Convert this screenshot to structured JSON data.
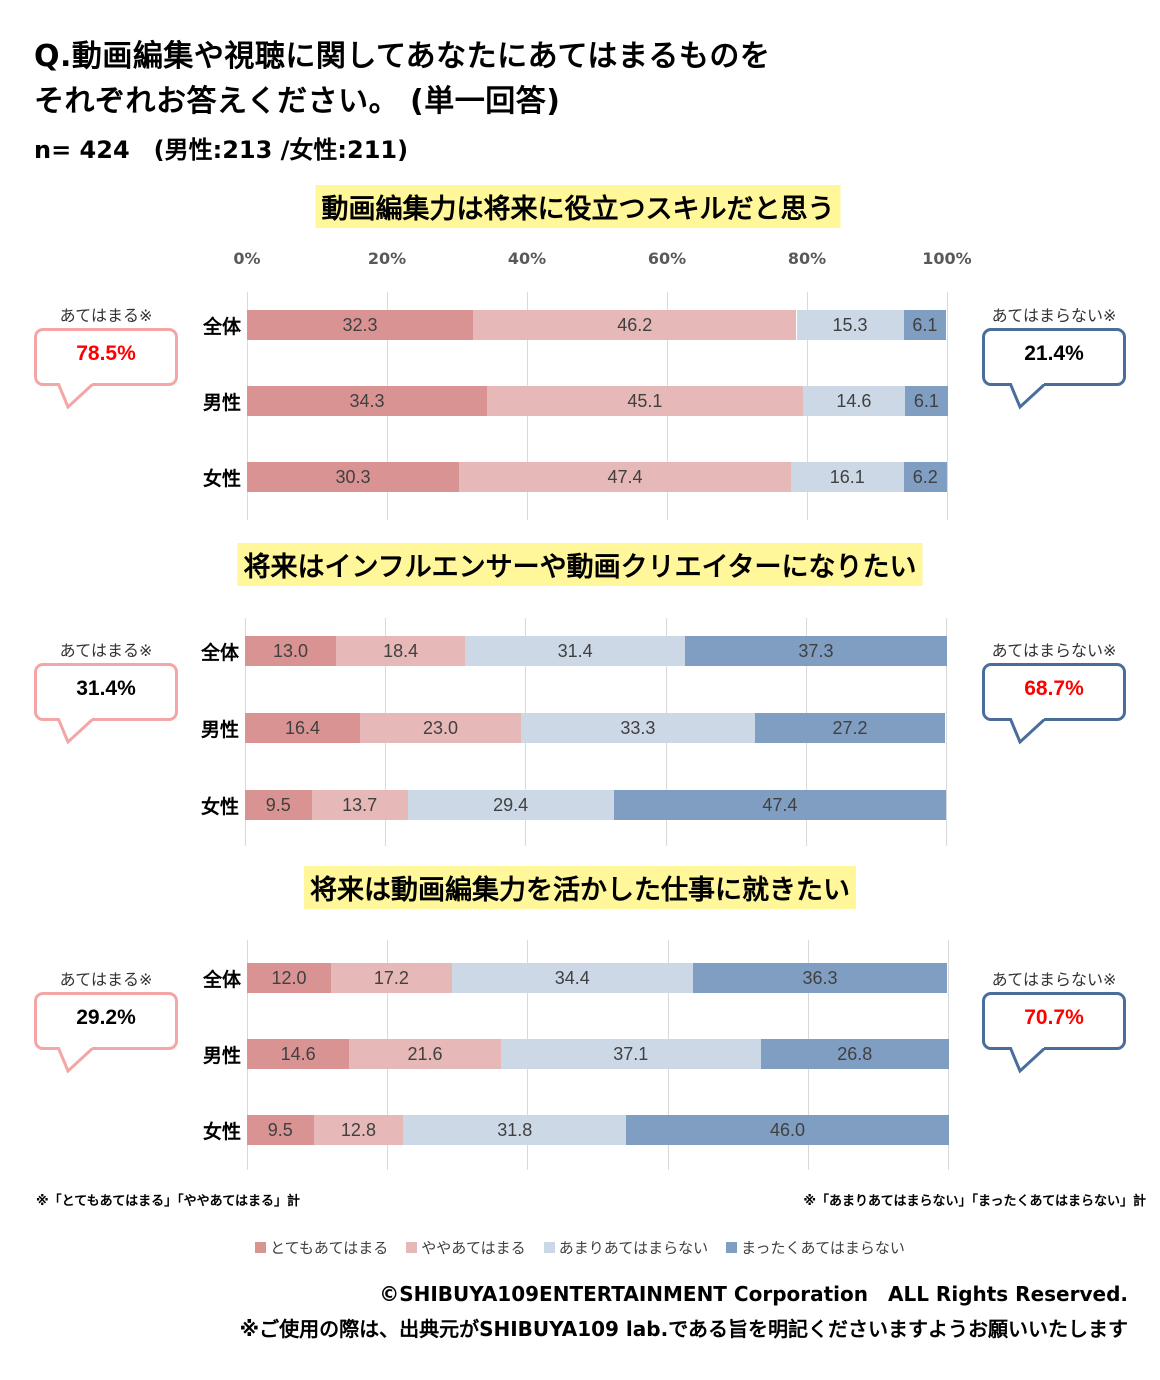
{
  "header": {
    "question_line1": "Q.動画編集や視聴に関してあなたにあてはまるものを",
    "question_line2": "それぞれお答えください。 (単一回答)",
    "sample": "n= 424　(男性:213 /女性:211)"
  },
  "colors": {
    "very_true": "#d99393",
    "somewhat_true": "#e6b8b7",
    "not_very_true": "#cdd8e6",
    "not_at_all_true": "#7f9ec2",
    "highlight_value": "#ff0000",
    "heading_bg": "#fff799"
  },
  "axis_ticks": [
    "0%",
    "20%",
    "40%",
    "60%",
    "80%",
    "100%"
  ],
  "legend": [
    "とてもあてはまる",
    "ややあてはまる",
    "あまりあてはまらない",
    "まったくあてはまらない"
  ],
  "callout_labels": {
    "positive": "あてはまる※",
    "negative": "あてはまらない※"
  },
  "chart_data": [
    {
      "type": "bar",
      "stacked": true,
      "orientation": "horizontal",
      "title": "動画編集力は将来に役立つスキルだと思う",
      "categories": [
        "全体",
        "男性",
        "女性"
      ],
      "series": [
        {
          "name": "とてもあてはまる",
          "values": [
            32.3,
            34.3,
            30.3
          ]
        },
        {
          "name": "ややあてはまる",
          "values": [
            46.2,
            45.1,
            47.4
          ]
        },
        {
          "name": "あまりあてはまらない",
          "values": [
            15.3,
            14.6,
            16.1
          ]
        },
        {
          "name": "まったくあてはまらない",
          "values": [
            6.1,
            6.1,
            6.2
          ]
        }
      ],
      "xlim": [
        0,
        100
      ],
      "xlabel": "",
      "ylabel": "",
      "grid": true,
      "legend_position": "bottom",
      "callouts": {
        "positive": "78.5%",
        "positive_highlight": true,
        "negative": "21.4%",
        "negative_highlight": false
      }
    },
    {
      "type": "bar",
      "stacked": true,
      "orientation": "horizontal",
      "title": "将来はインフルエンサーや動画クリエイターになりたい",
      "categories": [
        "全体",
        "男性",
        "女性"
      ],
      "series": [
        {
          "name": "とてもあてはまる",
          "values": [
            13.0,
            16.4,
            9.5
          ]
        },
        {
          "name": "ややあてはまる",
          "values": [
            18.4,
            23.0,
            13.7
          ]
        },
        {
          "name": "あまりあてはまらない",
          "values": [
            31.4,
            33.3,
            29.4
          ]
        },
        {
          "name": "まったくあてはまらない",
          "values": [
            37.3,
            27.2,
            47.4
          ]
        }
      ],
      "xlim": [
        0,
        100
      ],
      "xlabel": "",
      "ylabel": "",
      "grid": true,
      "legend_position": "bottom",
      "callouts": {
        "positive": "31.4%",
        "positive_highlight": false,
        "negative": "68.7%",
        "negative_highlight": true
      }
    },
    {
      "type": "bar",
      "stacked": true,
      "orientation": "horizontal",
      "title": "将来は動画編集力を活かした仕事に就きたい",
      "categories": [
        "全体",
        "男性",
        "女性"
      ],
      "series": [
        {
          "name": "とてもあてはまる",
          "values": [
            12.0,
            14.6,
            9.5
          ]
        },
        {
          "name": "ややあてはまる",
          "values": [
            17.2,
            21.6,
            12.8
          ]
        },
        {
          "name": "あまりあてはまらない",
          "values": [
            34.4,
            37.1,
            31.8
          ]
        },
        {
          "name": "まったくあてはまらない",
          "values": [
            36.3,
            26.8,
            46.0
          ]
        }
      ],
      "xlim": [
        0,
        100
      ],
      "xlabel": "",
      "ylabel": "",
      "grid": true,
      "legend_position": "bottom",
      "callouts": {
        "positive": "29.2%",
        "positive_highlight": false,
        "negative": "70.7%",
        "negative_highlight": true
      }
    }
  ],
  "notes": {
    "positive": "※「とてもあてはまる」「ややあてはまる」計",
    "negative": "※「あまりあてはまらない」「まったくあてはまらない」計"
  },
  "footer": {
    "copyright": "©SHIBUYA109ENTERTAINMENT Corporation　ALL Rights Reserved.",
    "usage": "※ご使用の際は、出典元がSHIBUYA109 lab.である旨を明記くださいますようお願いいたします"
  }
}
